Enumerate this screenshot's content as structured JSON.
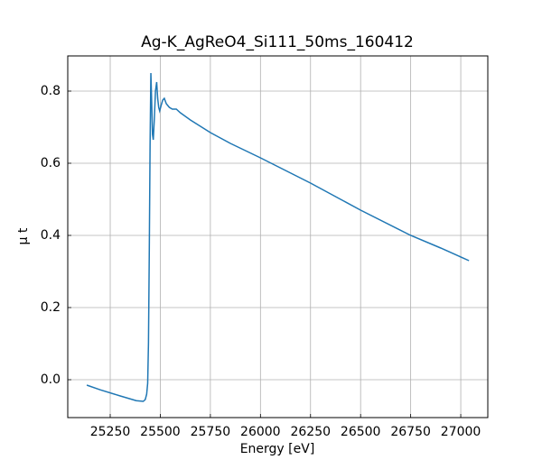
{
  "chart_data": {
    "type": "line",
    "title": "Ag-K_AgReO4_Si111_50ms_160412",
    "x_label": "Energy [eV]",
    "y_label": "μ t",
    "x": [
      25133,
      25200,
      25300,
      25380,
      25415,
      25425,
      25432,
      25437,
      25441,
      25445,
      25449,
      25453,
      25457,
      25461,
      25465,
      25470,
      25476,
      25482,
      25487,
      25492,
      25497,
      25504,
      25512,
      25520,
      25530,
      25545,
      25560,
      25580,
      25600,
      25650,
      25750,
      25850,
      26000,
      26250,
      26500,
      26750,
      26900,
      27041
    ],
    "series": [
      {
        "name": "μ t",
        "color": "#1f77b4",
        "values": [
          -0.015,
          -0.028,
          -0.045,
          -0.058,
          -0.06,
          -0.055,
          -0.04,
          -0.01,
          0.1,
          0.35,
          0.65,
          0.85,
          0.77,
          0.68,
          0.665,
          0.72,
          0.8,
          0.825,
          0.78,
          0.755,
          0.745,
          0.76,
          0.775,
          0.78,
          0.765,
          0.755,
          0.75,
          0.75,
          0.74,
          0.72,
          0.685,
          0.655,
          0.615,
          0.545,
          0.47,
          0.4,
          0.365,
          0.33
        ]
      }
    ],
    "xlim": [
      25038,
      27135
    ],
    "ylim": [
      -0.105,
      0.8975
    ],
    "xticks": [
      25250,
      25500,
      25750,
      26000,
      26250,
      26500,
      26750,
      27000
    ],
    "yticks": [
      {
        "value": 0,
        "label": "0.0"
      },
      0.2,
      0.4,
      0.6,
      0.8
    ],
    "grid": true
  }
}
